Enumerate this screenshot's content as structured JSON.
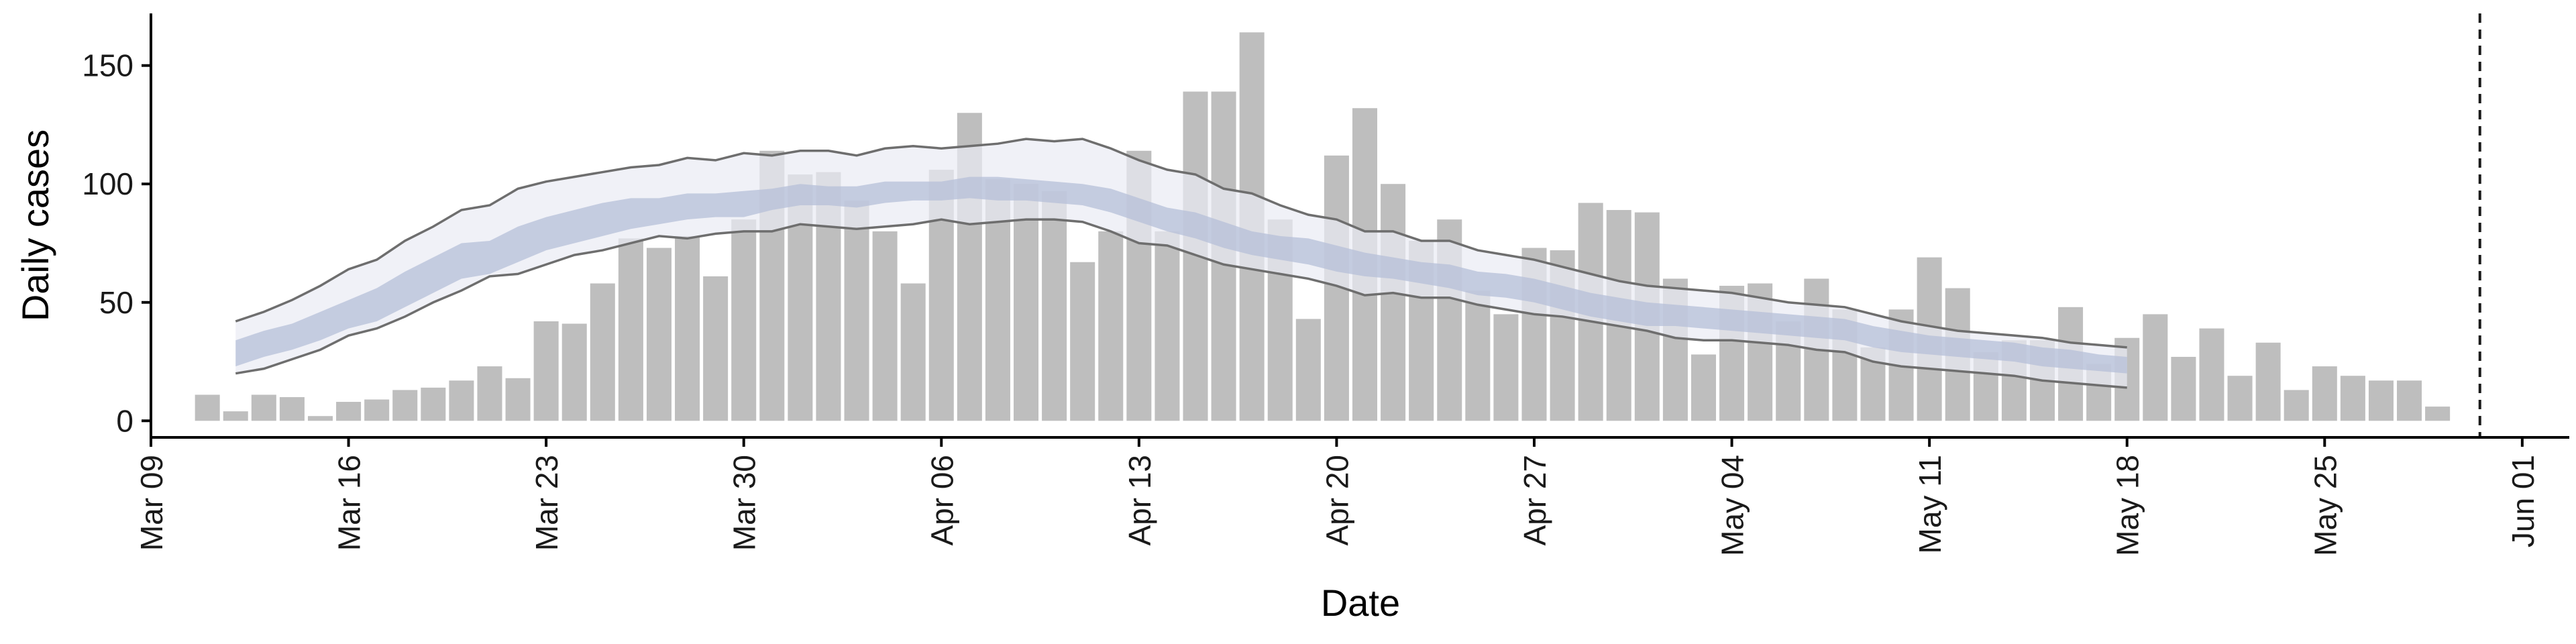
{
  "chart_data": {
    "type": "bar",
    "xlabel": "Date",
    "ylabel": "Daily cases",
    "ylim": [
      -7,
      172
    ],
    "xlim": [
      "2020-03-09T00:00",
      "2020-06-02T16:00"
    ],
    "y_ticks": [
      0,
      50,
      100,
      150
    ],
    "x_tick_dates": [
      "2020-03-09",
      "2020-03-16",
      "2020-03-23",
      "2020-03-30",
      "2020-04-06",
      "2020-04-13",
      "2020-04-20",
      "2020-04-27",
      "2020-05-04",
      "2020-05-11",
      "2020-05-18",
      "2020-05-25",
      "2020-06-01"
    ],
    "x_tick_labels": [
      "Mar 09",
      "Mar 16",
      "Mar 23",
      "Mar 30",
      "Apr 06",
      "Apr 13",
      "Apr 20",
      "Apr 27",
      "May 04",
      "May 11",
      "May 18",
      "May 25",
      "Jun 01"
    ],
    "grid": false,
    "legend": "none",
    "colors": {
      "bars": "#bebebe",
      "outer_band": "#e9ebf3",
      "inner_band": "#b5bfd8",
      "band_lines": "#6e6e6e",
      "vline": "#1a1a1a"
    },
    "bars": {
      "dates": [
        "2020-03-11",
        "2020-03-12",
        "2020-03-13",
        "2020-03-14",
        "2020-03-15",
        "2020-03-16",
        "2020-03-17",
        "2020-03-18",
        "2020-03-19",
        "2020-03-20",
        "2020-03-21",
        "2020-03-22",
        "2020-03-23",
        "2020-03-24",
        "2020-03-25",
        "2020-03-26",
        "2020-03-27",
        "2020-03-28",
        "2020-03-29",
        "2020-03-30",
        "2020-03-31",
        "2020-04-01",
        "2020-04-02",
        "2020-04-03",
        "2020-04-04",
        "2020-04-05",
        "2020-04-06",
        "2020-04-07",
        "2020-04-08",
        "2020-04-09",
        "2020-04-10",
        "2020-04-11",
        "2020-04-12",
        "2020-04-13",
        "2020-04-14",
        "2020-04-15",
        "2020-04-16",
        "2020-04-17",
        "2020-04-18",
        "2020-04-19",
        "2020-04-20",
        "2020-04-21",
        "2020-04-22",
        "2020-04-23",
        "2020-04-24",
        "2020-04-25",
        "2020-04-26",
        "2020-04-27",
        "2020-04-28",
        "2020-04-29",
        "2020-04-30",
        "2020-05-01",
        "2020-05-02",
        "2020-05-03",
        "2020-05-04",
        "2020-05-05",
        "2020-05-06",
        "2020-05-07",
        "2020-05-08",
        "2020-05-09",
        "2020-05-10",
        "2020-05-11",
        "2020-05-12",
        "2020-05-13",
        "2020-05-14",
        "2020-05-15",
        "2020-05-16",
        "2020-05-17",
        "2020-05-18",
        "2020-05-19",
        "2020-05-20",
        "2020-05-21",
        "2020-05-22",
        "2020-05-23",
        "2020-05-24",
        "2020-05-25",
        "2020-05-26",
        "2020-05-27",
        "2020-05-28",
        "2020-05-29"
      ],
      "values": [
        11,
        4,
        11,
        10,
        2,
        8,
        9,
        13,
        14,
        17,
        23,
        18,
        42,
        41,
        58,
        77,
        73,
        78,
        61,
        85,
        114,
        104,
        105,
        93,
        80,
        58,
        106,
        130,
        102,
        100,
        97,
        67,
        80,
        114,
        80,
        139,
        139,
        164,
        85,
        43,
        112,
        132,
        100,
        76,
        85,
        55,
        45,
        73,
        72,
        92,
        89,
        88,
        60,
        28,
        57,
        58,
        42,
        60,
        47,
        31,
        47,
        69,
        56,
        29,
        34,
        34,
        48,
        24,
        35,
        45,
        27,
        39,
        19,
        33,
        13,
        23,
        19,
        17,
        17,
        6
      ]
    },
    "model": {
      "dates": [
        "2020-03-12",
        "2020-03-13",
        "2020-03-14",
        "2020-03-15",
        "2020-03-16",
        "2020-03-17",
        "2020-03-18",
        "2020-03-19",
        "2020-03-20",
        "2020-03-21",
        "2020-03-22",
        "2020-03-23",
        "2020-03-24",
        "2020-03-25",
        "2020-03-26",
        "2020-03-27",
        "2020-03-28",
        "2020-03-29",
        "2020-03-30",
        "2020-03-31",
        "2020-04-01",
        "2020-04-02",
        "2020-04-03",
        "2020-04-04",
        "2020-04-05",
        "2020-04-06",
        "2020-04-07",
        "2020-04-08",
        "2020-04-09",
        "2020-04-10",
        "2020-04-11",
        "2020-04-12",
        "2020-04-13",
        "2020-04-14",
        "2020-04-15",
        "2020-04-16",
        "2020-04-17",
        "2020-04-18",
        "2020-04-19",
        "2020-04-20",
        "2020-04-21",
        "2020-04-22",
        "2020-04-23",
        "2020-04-24",
        "2020-04-25",
        "2020-04-26",
        "2020-04-27",
        "2020-04-28",
        "2020-04-29",
        "2020-04-30",
        "2020-05-01",
        "2020-05-02",
        "2020-05-03",
        "2020-05-04",
        "2020-05-05",
        "2020-05-06",
        "2020-05-07",
        "2020-05-08",
        "2020-05-09",
        "2020-05-10",
        "2020-05-11",
        "2020-05-12",
        "2020-05-13",
        "2020-05-14",
        "2020-05-15",
        "2020-05-16",
        "2020-05-17",
        "2020-05-18"
      ],
      "outer_upper": [
        42,
        46,
        51,
        57,
        64,
        68,
        76,
        82,
        89,
        91,
        98,
        101,
        103,
        105,
        107,
        108,
        111,
        110,
        113,
        112,
        114,
        114,
        112,
        115,
        116,
        115,
        116,
        117,
        119,
        118,
        119,
        115,
        110,
        106,
        104,
        98,
        96,
        91,
        87,
        85,
        80,
        80,
        76,
        76,
        72,
        70,
        68,
        65,
        62,
        59,
        57,
        56,
        55,
        54,
        52,
        50,
        49,
        48,
        45,
        42,
        40,
        38,
        37,
        36,
        35,
        33,
        32,
        31
      ],
      "inner_upper": [
        34,
        38,
        41,
        46,
        51,
        56,
        63,
        69,
        75,
        76,
        82,
        86,
        89,
        92,
        94,
        94,
        96,
        96,
        97,
        98,
        100,
        99,
        99,
        101,
        101,
        101,
        103,
        103,
        102,
        101,
        100,
        98,
        94,
        90,
        88,
        84,
        80,
        78,
        77,
        74,
        71,
        69,
        67,
        66,
        63,
        62,
        60,
        57,
        54,
        52,
        50,
        49,
        48,
        47,
        46,
        45,
        44,
        43,
        40,
        38,
        36,
        35,
        34,
        33,
        31,
        30,
        28,
        27
      ],
      "inner_lower": [
        23,
        27,
        30,
        34,
        39,
        42,
        48,
        54,
        60,
        62,
        67,
        72,
        75,
        78,
        81,
        83,
        85,
        86,
        86,
        89,
        91,
        91,
        90,
        92,
        93,
        93,
        94,
        93,
        93,
        92,
        91,
        88,
        84,
        80,
        77,
        73,
        70,
        68,
        66,
        63,
        61,
        60,
        58,
        56,
        53,
        52,
        50,
        47,
        44,
        42,
        40,
        40,
        39,
        38,
        37,
        36,
        35,
        34,
        31,
        29,
        28,
        27,
        26,
        25,
        23,
        22,
        21,
        20
      ],
      "outer_lower": [
        20,
        22,
        26,
        30,
        36,
        39,
        44,
        50,
        55,
        61,
        62,
        66,
        70,
        72,
        75,
        78,
        77,
        79,
        80,
        80,
        83,
        82,
        81,
        82,
        83,
        85,
        83,
        84,
        85,
        85,
        84,
        80,
        75,
        74,
        70,
        66,
        64,
        62,
        60,
        57,
        53,
        54,
        52,
        52,
        49,
        47,
        45,
        44,
        42,
        40,
        38,
        35,
        34,
        34,
        33,
        32,
        30,
        29,
        25,
        23,
        22,
        21,
        20,
        19,
        17,
        16,
        15,
        14
      ]
    },
    "vline_date": "2020-05-30",
    "vline_style": "dashed"
  }
}
